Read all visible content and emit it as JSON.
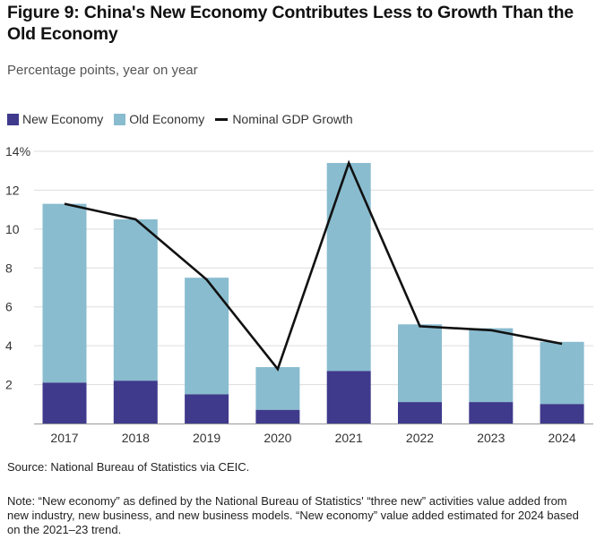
{
  "title_bold": "Figure 9:",
  "title_rest": " China's New Economy Contributes Less to Growth Than the Old Economy",
  "subtitle": "Percentage points, year on year",
  "legend": {
    "new": "New Economy",
    "old": "Old Economy",
    "gdp": "Nominal GDP Growth"
  },
  "colors": {
    "new": "#3f3a8c",
    "old": "#89bccf",
    "gdp": "#111111",
    "grid": "#dddddd"
  },
  "chart_data": {
    "type": "bar",
    "stacked": true,
    "categories": [
      "2017",
      "2018",
      "2019",
      "2020",
      "2021",
      "2022",
      "2023",
      "2024"
    ],
    "series": [
      {
        "name": "New Economy",
        "values": [
          2.1,
          2.2,
          1.5,
          0.7,
          2.7,
          1.1,
          1.1,
          1.0
        ]
      },
      {
        "name": "Old Economy",
        "values": [
          9.2,
          8.3,
          6.0,
          2.2,
          10.7,
          4.0,
          3.8,
          3.2
        ]
      }
    ],
    "line": {
      "name": "Nominal GDP Growth",
      "values": [
        11.3,
        10.5,
        7.4,
        2.8,
        13.4,
        5.0,
        4.8,
        4.1
      ]
    },
    "yticks": [
      "2",
      "4",
      "6",
      "8",
      "10",
      "12",
      "14%"
    ],
    "ylim": [
      0,
      14
    ],
    "grid": true,
    "legend_position": "top-left"
  },
  "source": "Source: National Bureau of Statistics via CEIC.",
  "note": "Note: “New economy” as defined by the National Bureau of Statistics' “three new” activities value added from new industry, new business, and new business models. “New economy” value added estimated for 2024 based on the 2021–23 trend."
}
